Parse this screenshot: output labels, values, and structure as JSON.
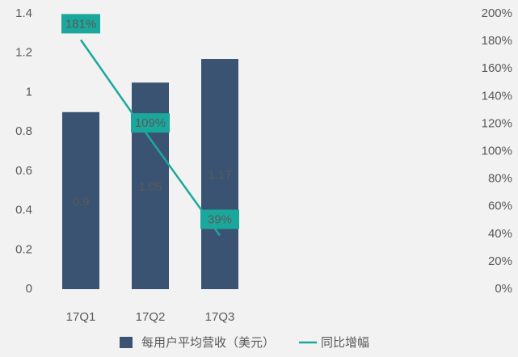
{
  "chart_data": {
    "type": "bar",
    "categories": [
      "17Q1",
      "17Q2",
      "17Q3",
      null,
      null,
      null
    ],
    "series": [
      {
        "name": "每用户平均营收（美元）",
        "type": "bar",
        "color": "#3b5372",
        "values": [
          0.9,
          1.05,
          1.17,
          null,
          null,
          null
        ]
      },
      {
        "name": "同比增幅",
        "type": "line",
        "axis": "y2",
        "color": "#1aa89c",
        "values": [
          181,
          109,
          39,
          null,
          null,
          null
        ],
        "value_labels": [
          "181%",
          "109%",
          "39%",
          null,
          null,
          null
        ]
      }
    ],
    "ylim": [
      0,
      1.4
    ],
    "yticks": [
      0,
      0.2,
      0.4,
      0.6,
      0.8,
      1,
      1.2,
      1.4
    ],
    "y2lim": [
      0,
      200
    ],
    "y2ticks": [
      {
        "value": 0,
        "label": "0%"
      },
      {
        "value": 20,
        "label": "20%"
      },
      {
        "value": 40,
        "label": "40%"
      },
      {
        "value": 60,
        "label": "60%"
      },
      {
        "value": 80,
        "label": "80%"
      },
      {
        "value": 100,
        "label": "100%"
      },
      {
        "value": 120,
        "label": "120%"
      },
      {
        "value": 140,
        "label": "140%"
      },
      {
        "value": 160,
        "label": "160%"
      },
      {
        "value": 180,
        "label": "180%"
      },
      {
        "value": 200,
        "label": "200%"
      }
    ],
    "grid": false,
    "legend": "bottom"
  }
}
